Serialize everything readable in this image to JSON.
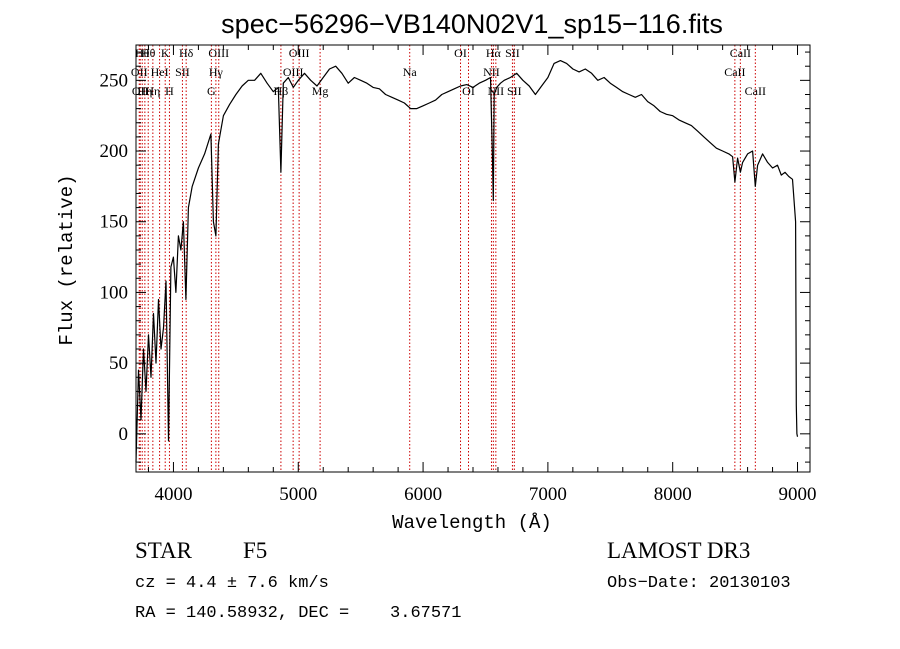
{
  "chart_data": {
    "type": "line",
    "title": "spec−56296−VB140N02V1_sp15−116.fits",
    "xlabel": "Wavelength (Å)",
    "ylabel": "Flux (relative)",
    "xlim": [
      3700,
      9100
    ],
    "ylim": [
      -27,
      275
    ],
    "xticks": [
      4000,
      5000,
      6000,
      7000,
      8000,
      9000
    ],
    "yticks": [
      0,
      50,
      100,
      150,
      200,
      250
    ],
    "series": [
      {
        "name": "flux",
        "x": [
          3700,
          3720,
          3740,
          3760,
          3780,
          3800,
          3820,
          3840,
          3860,
          3880,
          3900,
          3920,
          3940,
          3960,
          3980,
          4000,
          4020,
          4040,
          4060,
          4080,
          4100,
          4120,
          4150,
          4200,
          4250,
          4300,
          4320,
          4340,
          4360,
          4380,
          4400,
          4450,
          4500,
          4550,
          4600,
          4650,
          4700,
          4750,
          4800,
          4840,
          4861,
          4880,
          4920,
          4960,
          5000,
          5050,
          5100,
          5150,
          5200,
          5250,
          5300,
          5350,
          5400,
          5450,
          5500,
          5550,
          5600,
          5650,
          5700,
          5750,
          5800,
          5850,
          5900,
          5950,
          6000,
          6050,
          6100,
          6150,
          6200,
          6250,
          6300,
          6350,
          6400,
          6450,
          6500,
          6540,
          6555,
          6563,
          6570,
          6590,
          6620,
          6650,
          6700,
          6750,
          6800,
          6850,
          6900,
          6950,
          7000,
          7050,
          7100,
          7150,
          7200,
          7250,
          7300,
          7350,
          7400,
          7450,
          7500,
          7550,
          7600,
          7650,
          7700,
          7750,
          7800,
          7850,
          7900,
          7950,
          8000,
          8050,
          8100,
          8150,
          8200,
          8250,
          8300,
          8350,
          8400,
          8450,
          8480,
          8498,
          8520,
          8542,
          8560,
          8600,
          8640,
          8662,
          8680,
          8720,
          8760,
          8800,
          8840,
          8870,
          8900,
          8930,
          8960,
          8985,
          8990,
          8995,
          9000
        ],
        "y": [
          -20,
          45,
          10,
          60,
          30,
          70,
          40,
          85,
          50,
          95,
          60,
          75,
          108,
          -5,
          118,
          125,
          100,
          140,
          130,
          150,
          95,
          160,
          175,
          188,
          198,
          212,
          150,
          140,
          205,
          215,
          225,
          233,
          240,
          246,
          250,
          250,
          255,
          248,
          242,
          245,
          185,
          248,
          252,
          245,
          250,
          255,
          250,
          246,
          252,
          258,
          260,
          255,
          248,
          252,
          250,
          248,
          245,
          244,
          240,
          238,
          236,
          234,
          230,
          230,
          232,
          234,
          236,
          240,
          242,
          244,
          246,
          247,
          245,
          248,
          250,
          252,
          200,
          165,
          240,
          245,
          248,
          250,
          252,
          255,
          250,
          246,
          240,
          246,
          252,
          262,
          264,
          262,
          258,
          256,
          258,
          255,
          250,
          252,
          248,
          245,
          242,
          240,
          238,
          240,
          235,
          232,
          228,
          226,
          225,
          222,
          220,
          218,
          214,
          210,
          206,
          202,
          200,
          198,
          196,
          178,
          195,
          185,
          192,
          198,
          200,
          175,
          190,
          198,
          192,
          188,
          190,
          183,
          185,
          182,
          180,
          150,
          20,
          0,
          -2
        ]
      }
    ],
    "lines": [
      {
        "wave": 3726,
        "label": "OII",
        "row": 2
      },
      {
        "wave": 3734,
        "label": "OII",
        "row": 3
      },
      {
        "wave": 3750,
        "label": "Hθ",
        "row": 1
      },
      {
        "wave": 3771,
        "label": "Hη",
        "row": 3
      },
      {
        "wave": 3798,
        "label": "Hθ",
        "row": 1
      },
      {
        "wave": 3835,
        "label": "Hη",
        "row": 3
      },
      {
        "wave": 3889,
        "label": "HeI",
        "row": 2
      },
      {
        "wave": 3934,
        "label": "K",
        "row": 1
      },
      {
        "wave": 3968,
        "label": "H",
        "row": 3
      },
      {
        "wave": 4072,
        "label": "SII",
        "row": 2
      },
      {
        "wave": 4102,
        "label": "Hδ",
        "row": 1
      },
      {
        "wave": 4304,
        "label": "G",
        "row": 3
      },
      {
        "wave": 4340,
        "label": "Hγ",
        "row": 2
      },
      {
        "wave": 4363,
        "label": "OIII",
        "row": 1
      },
      {
        "wave": 4861,
        "label": "Hβ",
        "row": 3
      },
      {
        "wave": 4959,
        "label": "OIII",
        "row": 2
      },
      {
        "wave": 5007,
        "label": "OIII",
        "row": 1
      },
      {
        "wave": 5175,
        "label": "Mg",
        "row": 3
      },
      {
        "wave": 5893,
        "label": "Na",
        "row": 2
      },
      {
        "wave": 6300,
        "label": "OI",
        "row": 1
      },
      {
        "wave": 6364,
        "label": "OI",
        "row": 3
      },
      {
        "wave": 6548,
        "label": "NII",
        "row": 2
      },
      {
        "wave": 6563,
        "label": "Hα",
        "row": 1
      },
      {
        "wave": 6583,
        "label": "NII",
        "row": 3
      },
      {
        "wave": 6716,
        "label": "SII",
        "row": 1
      },
      {
        "wave": 6731,
        "label": "SII",
        "row": 3
      },
      {
        "wave": 8498,
        "label": "CaII",
        "row": 2
      },
      {
        "wave": 8542,
        "label": "CaII",
        "row": 1
      },
      {
        "wave": 8662,
        "label": "CaII",
        "row": 3
      }
    ]
  },
  "info": {
    "object_class": "STAR",
    "subclass": "F5",
    "survey": "LAMOST DR3",
    "redshift": "cz = 4.4 ± 7.6 km/s",
    "obs_date": "Obs−Date: 20130103",
    "coords": "RA = 140.58932, DEC =    3.67571"
  },
  "colors": {
    "spectrum": "#000000",
    "line_markers": "#cc0000",
    "axes": "#000000"
  }
}
